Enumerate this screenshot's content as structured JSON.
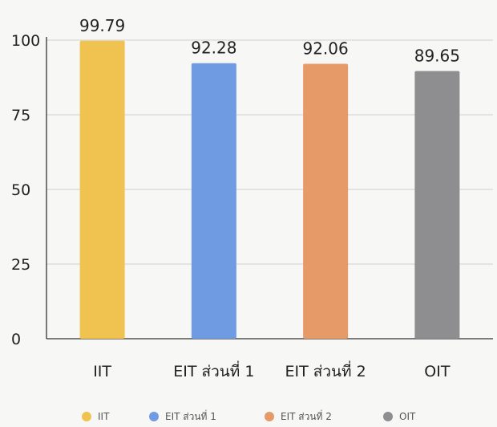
{
  "chart_data": {
    "type": "bar",
    "categories": [
      "IIT",
      "EIT ส่วนที่ 1",
      "EIT ส่วนที่ 2",
      "OIT"
    ],
    "values": [
      99.79,
      92.28,
      92.06,
      89.65
    ],
    "value_labels": [
      "99.79",
      "92.28",
      "92.06",
      "89.65"
    ],
    "colors": [
      "#f0c24f",
      "#6f9be3",
      "#e69a68",
      "#8e8e91"
    ],
    "yticks": [
      0,
      25,
      50,
      75,
      100
    ],
    "ylim": [
      0,
      100
    ],
    "grid": true,
    "legend": {
      "placement": "bottom",
      "entries": [
        "IIT",
        "EIT ส่วนที่ 1",
        "EIT ส่วนที่ 2",
        "OIT"
      ]
    },
    "title": "",
    "xlabel": "",
    "ylabel": ""
  }
}
